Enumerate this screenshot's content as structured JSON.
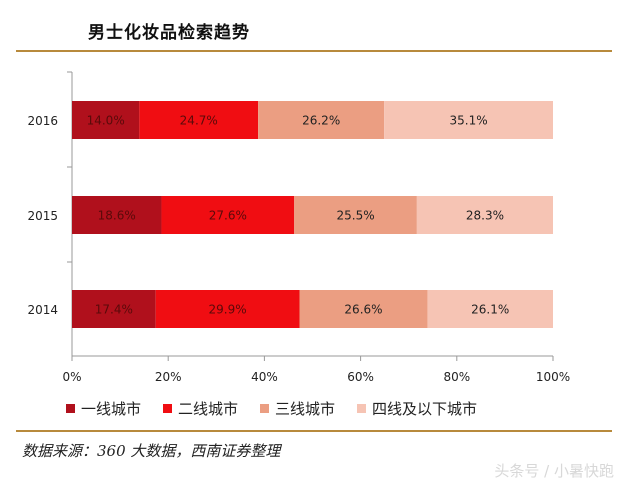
{
  "header": {
    "title": "男士化妆品检索趋势"
  },
  "source": "数据来源：360 大数据，西南证券整理",
  "watermark": "头条号 / 小暑快跑",
  "chart_data": {
    "type": "bar",
    "orientation": "horizontal",
    "stacked": true,
    "normalized": true,
    "title": "男士化妆品检索趋势",
    "categories": [
      "2016",
      "2015",
      "2014"
    ],
    "series": [
      {
        "name": "一线城市",
        "color": "#b0101c",
        "values": [
          14.0,
          18.6,
          17.4
        ],
        "labels": [
          "14.0%",
          "18.6%",
          "17.4%"
        ]
      },
      {
        "name": "二线城市",
        "color": "#f00d12",
        "values": [
          24.7,
          27.6,
          29.9
        ],
        "labels": [
          "24.7%",
          "27.6%",
          "29.9%"
        ]
      },
      {
        "name": "三线城市",
        "color": "#eb9e82",
        "values": [
          26.2,
          25.5,
          26.6
        ],
        "labels": [
          "26.2%",
          "25.5%",
          "26.6%"
        ]
      },
      {
        "name": "四线及以下城市",
        "color": "#f6c4b4",
        "values": [
          35.1,
          28.3,
          26.1
        ],
        "labels": [
          "35.1%",
          "28.3%",
          "26.1%"
        ]
      }
    ],
    "xlim": [
      0,
      100
    ],
    "xticks": [
      "0%",
      "20%",
      "40%",
      "60%",
      "80%",
      "100%"
    ],
    "grid": false,
    "legend_position": "bottom"
  }
}
